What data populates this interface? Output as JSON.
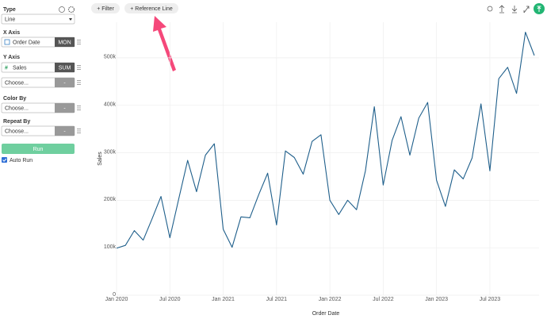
{
  "sidebar": {
    "type_label": "Type",
    "type_value": "Line",
    "x_axis_label": "X Axis",
    "x_axis_field": "Order Date",
    "x_axis_agg": "MON",
    "y_axis_label": "Y Axis",
    "y_axis_field": "Sales",
    "y_axis_agg": "SUM",
    "y_axis_extra": "Choose...",
    "y_axis_extra_btn": "-",
    "color_by_label": "Color By",
    "color_by_value": "Choose...",
    "color_by_btn": "-",
    "repeat_by_label": "Repeat By",
    "repeat_by_value": "Choose...",
    "repeat_by_btn": "-",
    "run": "Run",
    "auto_run": "Auto Run"
  },
  "toolbar": {
    "filter": "+ Filter",
    "reference_line": "+ Reference Line"
  },
  "chart_data": {
    "type": "line",
    "x_label": "Order Date",
    "y_label": "Sales",
    "color": "#1f5f8b",
    "grid": true,
    "x": [
      "2020-01",
      "2020-02",
      "2020-03",
      "2020-04",
      "2020-05",
      "2020-06",
      "2020-07",
      "2020-08",
      "2020-09",
      "2020-10",
      "2020-11",
      "2020-12",
      "2021-01",
      "2021-02",
      "2021-03",
      "2021-04",
      "2021-05",
      "2021-06",
      "2021-07",
      "2021-08",
      "2021-09",
      "2021-10",
      "2021-11",
      "2021-12",
      "2022-01",
      "2022-02",
      "2022-03",
      "2022-04",
      "2022-05",
      "2022-06",
      "2022-07",
      "2022-08",
      "2022-09",
      "2022-10",
      "2022-11",
      "2022-12",
      "2023-01",
      "2023-02",
      "2023-03",
      "2023-04",
      "2023-05",
      "2023-06",
      "2023-07",
      "2023-08",
      "2023-09",
      "2023-10",
      "2023-11",
      "2023-12"
    ],
    "series": [
      {
        "name": "Sales",
        "color": "#1f5f8b",
        "values": [
          99000,
          105000,
          136000,
          116000,
          161000,
          208000,
          121000,
          203000,
          284000,
          218000,
          295000,
          319000,
          139000,
          101000,
          165000,
          163000,
          212000,
          257000,
          148000,
          304000,
          290000,
          255000,
          324000,
          338000,
          200000,
          170000,
          200000,
          180000,
          262000,
          397000,
          232000,
          326000,
          376000,
          295000,
          373000,
          406000,
          242000,
          187000,
          264000,
          245000,
          289000,
          403000,
          262000,
          456000,
          480000,
          425000,
          554000,
          505000
        ]
      }
    ],
    "xticks": [
      {
        "value": "2020-01",
        "label": "Jan 2020"
      },
      {
        "value": "2020-07",
        "label": "Jul 2020"
      },
      {
        "value": "2021-01",
        "label": "Jan 2021"
      },
      {
        "value": "2021-07",
        "label": "Jul 2021"
      },
      {
        "value": "2022-01",
        "label": "Jan 2022"
      },
      {
        "value": "2022-07",
        "label": "Jul 2022"
      },
      {
        "value": "2023-01",
        "label": "Jan 2023"
      },
      {
        "value": "2023-07",
        "label": "Jul 2023"
      }
    ],
    "ylim": [
      0,
      575000
    ],
    "yticks": [
      0,
      {
        "value": 100000,
        "label": "100k"
      },
      {
        "value": 200000,
        "label": "200k"
      },
      {
        "value": 300000,
        "label": "300k"
      },
      {
        "value": 400000,
        "label": "400k"
      },
      {
        "value": 500000,
        "label": "500k"
      }
    ]
  }
}
